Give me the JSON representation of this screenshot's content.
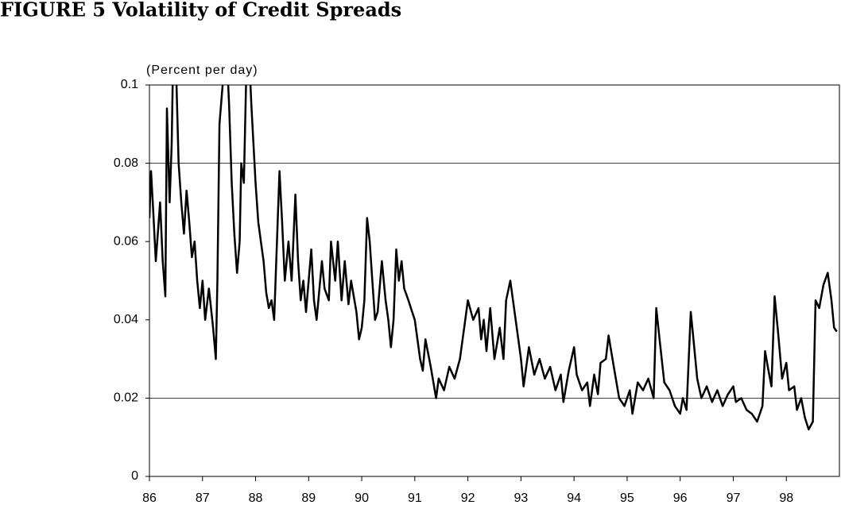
{
  "chart_data": {
    "type": "line",
    "title": "FIGURE 5 Volatility of Credit Spreads",
    "y_label": "(Percent per day)",
    "color": "#000000",
    "xlim": [
      86,
      99
    ],
    "xticks": [
      86,
      87,
      88,
      89,
      90,
      91,
      92,
      93,
      94,
      95,
      96,
      97,
      98
    ],
    "ylim": [
      0,
      0.1
    ],
    "yticks": [
      0,
      0.02,
      0.04,
      0.06,
      0.08,
      0.1
    ],
    "grid_lines": [
      0.02,
      0.08
    ],
    "x": [
      86.0,
      86.03,
      86.07,
      86.12,
      86.2,
      86.25,
      86.3,
      86.33,
      86.38,
      86.42,
      86.45,
      86.5,
      86.55,
      86.6,
      86.65,
      86.7,
      86.75,
      86.8,
      86.85,
      86.9,
      86.95,
      87.0,
      87.05,
      87.12,
      87.2,
      87.25,
      87.28,
      87.32,
      87.38,
      87.45,
      87.5,
      87.55,
      87.6,
      87.65,
      87.7,
      87.73,
      87.78,
      87.82,
      87.87,
      87.92,
      88.0,
      88.05,
      88.1,
      88.15,
      88.2,
      88.25,
      88.3,
      88.35,
      88.45,
      88.5,
      88.55,
      88.62,
      88.68,
      88.75,
      88.8,
      88.85,
      88.9,
      88.95,
      89.0,
      89.05,
      89.1,
      89.15,
      89.25,
      89.3,
      89.38,
      89.42,
      89.5,
      89.55,
      89.62,
      89.68,
      89.75,
      89.8,
      89.9,
      89.95,
      90.0,
      90.05,
      90.1,
      90.15,
      90.2,
      90.25,
      90.3,
      90.38,
      90.45,
      90.5,
      90.55,
      90.6,
      90.65,
      90.7,
      90.75,
      90.8,
      90.88,
      90.95,
      91.0,
      91.1,
      91.15,
      91.2,
      91.3,
      91.4,
      91.45,
      91.55,
      91.65,
      91.75,
      91.85,
      91.95,
      92.0,
      92.1,
      92.2,
      92.25,
      92.3,
      92.35,
      92.42,
      92.5,
      92.6,
      92.67,
      92.72,
      92.8,
      92.9,
      93.0,
      93.05,
      93.15,
      93.25,
      93.35,
      93.45,
      93.55,
      93.65,
      93.75,
      93.8,
      93.9,
      94.0,
      94.05,
      94.15,
      94.25,
      94.3,
      94.38,
      94.45,
      94.5,
      94.6,
      94.65,
      94.75,
      94.85,
      94.95,
      95.05,
      95.1,
      95.2,
      95.3,
      95.4,
      95.5,
      95.55,
      95.62,
      95.7,
      95.8,
      95.9,
      96.0,
      96.05,
      96.12,
      96.2,
      96.25,
      96.32,
      96.4,
      96.5,
      96.6,
      96.7,
      96.8,
      96.9,
      97.0,
      97.05,
      97.15,
      97.25,
      97.35,
      97.45,
      97.55,
      97.6,
      97.65,
      97.72,
      97.78,
      97.85,
      97.92,
      98.0,
      98.05,
      98.15,
      98.2,
      98.28,
      98.35,
      98.42,
      98.5,
      98.55,
      98.62,
      98.7,
      98.78,
      98.85,
      98.9,
      98.95
    ],
    "values": [
      0.066,
      0.078,
      0.068,
      0.055,
      0.07,
      0.055,
      0.046,
      0.094,
      0.07,
      0.085,
      0.11,
      0.105,
      0.08,
      0.07,
      0.062,
      0.073,
      0.065,
      0.056,
      0.06,
      0.05,
      0.043,
      0.05,
      0.04,
      0.048,
      0.038,
      0.03,
      0.05,
      0.09,
      0.1,
      0.11,
      0.095,
      0.075,
      0.062,
      0.052,
      0.06,
      0.08,
      0.075,
      0.1,
      0.11,
      0.095,
      0.075,
      0.065,
      0.06,
      0.055,
      0.047,
      0.043,
      0.045,
      0.04,
      0.078,
      0.065,
      0.05,
      0.06,
      0.05,
      0.072,
      0.055,
      0.045,
      0.05,
      0.042,
      0.05,
      0.058,
      0.045,
      0.04,
      0.055,
      0.048,
      0.045,
      0.06,
      0.05,
      0.06,
      0.045,
      0.055,
      0.044,
      0.05,
      0.042,
      0.035,
      0.038,
      0.045,
      0.066,
      0.06,
      0.05,
      0.04,
      0.042,
      0.055,
      0.045,
      0.04,
      0.033,
      0.04,
      0.058,
      0.05,
      0.055,
      0.048,
      0.045,
      0.042,
      0.04,
      0.03,
      0.027,
      0.035,
      0.028,
      0.02,
      0.025,
      0.022,
      0.028,
      0.025,
      0.03,
      0.04,
      0.045,
      0.04,
      0.043,
      0.035,
      0.04,
      0.032,
      0.043,
      0.03,
      0.038,
      0.03,
      0.045,
      0.05,
      0.04,
      0.03,
      0.023,
      0.033,
      0.026,
      0.03,
      0.025,
      0.028,
      0.022,
      0.026,
      0.019,
      0.027,
      0.033,
      0.026,
      0.022,
      0.024,
      0.018,
      0.026,
      0.021,
      0.029,
      0.03,
      0.036,
      0.028,
      0.02,
      0.018,
      0.022,
      0.016,
      0.024,
      0.022,
      0.025,
      0.02,
      0.043,
      0.034,
      0.024,
      0.022,
      0.018,
      0.016,
      0.02,
      0.017,
      0.042,
      0.035,
      0.025,
      0.02,
      0.023,
      0.019,
      0.022,
      0.018,
      0.021,
      0.023,
      0.019,
      0.02,
      0.017,
      0.016,
      0.014,
      0.018,
      0.032,
      0.028,
      0.023,
      0.046,
      0.036,
      0.025,
      0.029,
      0.022,
      0.023,
      0.017,
      0.02,
      0.015,
      0.012,
      0.014,
      0.045,
      0.043,
      0.049,
      0.052,
      0.045,
      0.038,
      0.037
    ]
  }
}
